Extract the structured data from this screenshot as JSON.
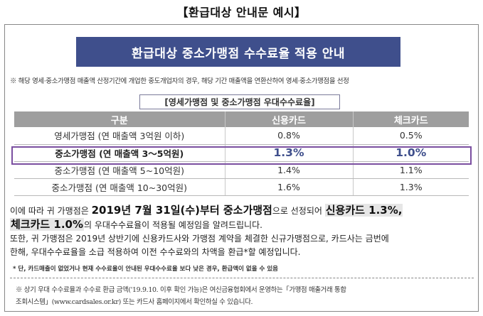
{
  "page_title": "【환급대상 안내문 예시】",
  "banner": "환급대상 중소가맹점 수수료율 적용 안내",
  "notice_line": "※ 해당 영세·중소가맹점 매출액 산정기간에 개업한 중도개업자의 경우, 해당 기간 매출액을 연환산하여 영세·중소가맹점을 선정",
  "rate_section_title": "[영세가맹점 및 중소가맹점 우대수수료율]",
  "rate_table": {
    "headers": [
      "구분",
      "신용카드",
      "체크카드"
    ],
    "rows": [
      [
        "영세가맹점 (연 매출액 3억원 이하)",
        "0.8%",
        "0.5%"
      ],
      [
        "중소가맹점 (연 매출액 3～5억원)",
        "1.3%",
        "1.0%"
      ],
      [
        "중소가맹점 (연 매출액 5~10억원)",
        "1.4%",
        "1.1%"
      ],
      [
        "중소가맹점 (연 매출액 10~30억원)",
        "1.6%",
        "1.3%"
      ]
    ],
    "highlighted_row": 1
  },
  "body": {
    "p1_a": "이에 따라 귀 가맹점은 ",
    "p1_b": "2019년 7월 31일(수)부터 중소가맹점",
    "p1_c": "으로 선정되어 ",
    "p1_d": "신용카드 1.3%,",
    "p2_a": "체크카드 1.0%",
    "p2_b": "의 우대수수료율이 적용될 예정임을 알려드립니다.",
    "p3": "또한, 귀 가맹점은 2019년 상반기에 신용카드사와 가맹점 계약을 체결한 신규가맹점으로, 카드사는 금번에",
    "p4": "한해, 우대수수료율을 소급 적용하여 이전 수수료와의 차액을 환급*할 예정입니다."
  },
  "footnote_star": "* 단, 카드매출이 없었거나 현재 수수료율이 안내된 우대수수료율 보다 낮은 경우, 환급액이 없을 수 있음",
  "footnote_bottom": {
    "line1": "※ 상기 우대 수수료율과 수수료 환급 금액('19.9.10. 이후 확인 가능)은 여신금융협회에서 운영하는「가맹점 매출거래 통합",
    "line2": "조회시스템」(www.cardsales.or.kr) 또는 카드사 홈페이지에서 확인하실 수 있습니다."
  }
}
